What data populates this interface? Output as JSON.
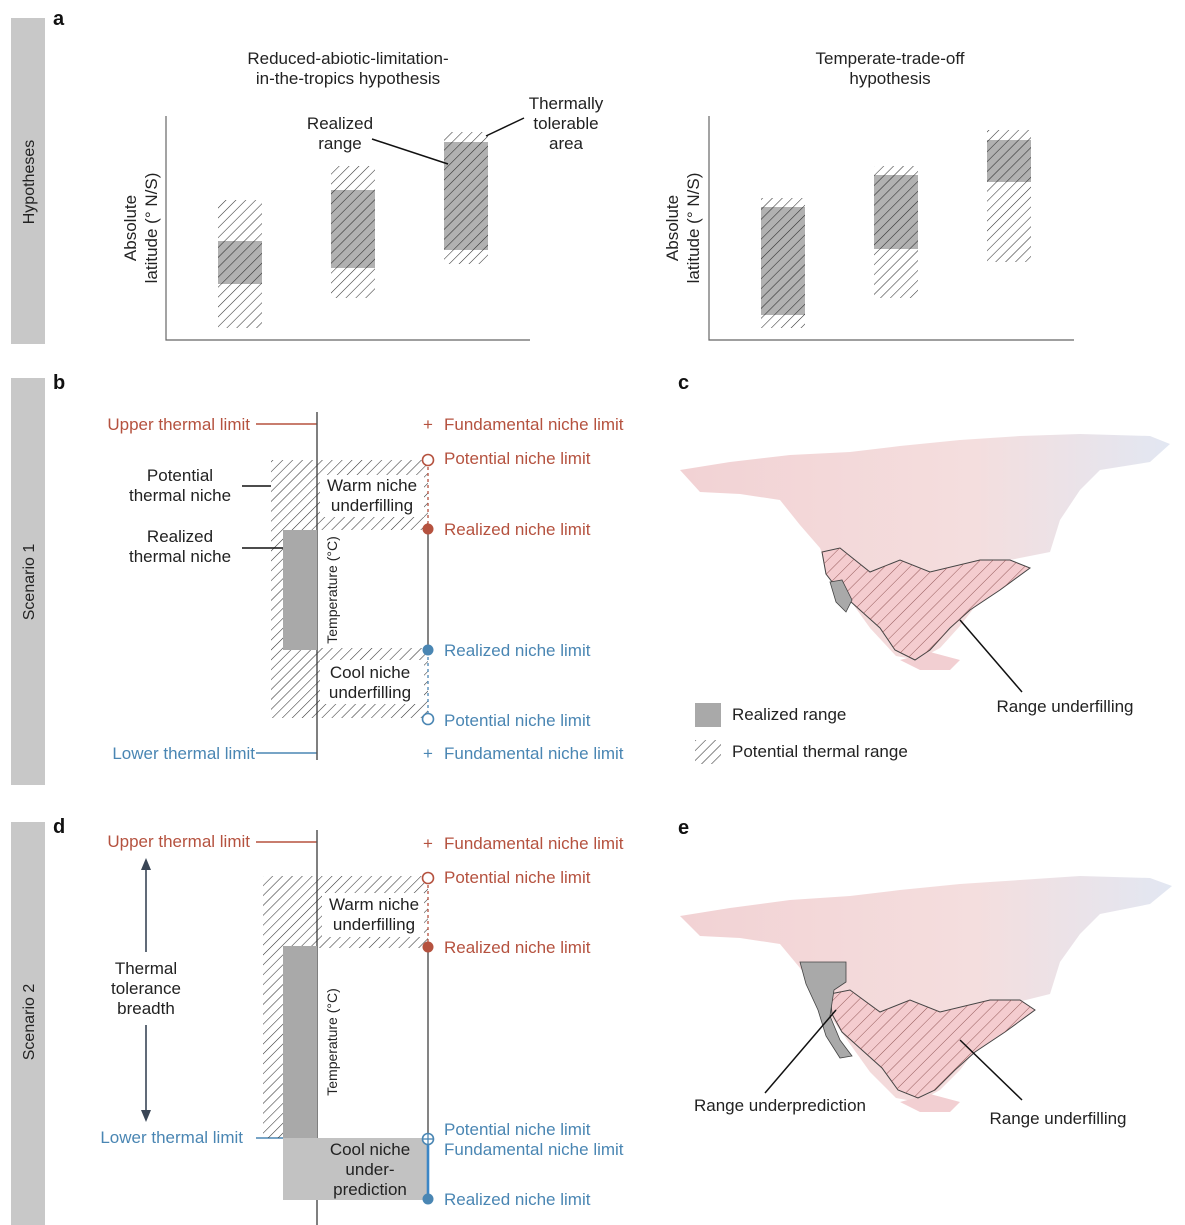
{
  "panel_letters": {
    "a": "a",
    "b": "b",
    "c": "c",
    "d": "d",
    "e": "e"
  },
  "side_labels": {
    "hypotheses": "Hypotheses",
    "scenario1": "Scenario 1",
    "scenario2": "Scenario 2"
  },
  "panel_a": {
    "left_title_1": "Reduced-abiotic-limitation-",
    "left_title_2": "in-the-tropics hypothesis",
    "right_title_1": "Temperate-trade-off",
    "right_title_2": "hypothesis",
    "ylabel_1": "Absolute",
    "ylabel_2": "latitude (° N/S)",
    "realized_1": "Realized",
    "realized_2": "range",
    "tolerable_1": "Thermally",
    "tolerable_2": "tolerable",
    "tolerable_3": "area"
  },
  "panel_b": {
    "upper_thermal": "Upper thermal limit",
    "lower_thermal": "Lower thermal limit",
    "potential_niche_1": "Potential",
    "potential_niche_2": "thermal niche",
    "realized_niche_1": "Realized",
    "realized_niche_2": "thermal niche",
    "warm_1": "Warm niche",
    "warm_2": "underfilling",
    "cool_1": "Cool niche",
    "cool_2": "underfilling",
    "temp_axis": "Temperature (°C)",
    "fund_top": "Fundamental niche limit",
    "pot_top": "Potential niche limit",
    "real_top": "Realized niche limit",
    "real_bot": "Realized niche limit",
    "pot_bot": "Potential niche limit",
    "fund_bot": "Fundamental niche limit",
    "plus": "+"
  },
  "panel_c": {
    "underfilling": "Range underfilling",
    "legend_realized": "Realized range",
    "legend_potential": "Potential thermal range"
  },
  "panel_d": {
    "upper_thermal": "Upper thermal limit",
    "lower_thermal": "Lower thermal limit",
    "breadth_1": "Thermal",
    "breadth_2": "tolerance",
    "breadth_3": "breadth",
    "warm_1": "Warm niche",
    "warm_2": "underfilling",
    "cool_1": "Cool niche",
    "cool_2": "under-",
    "cool_3": "prediction",
    "temp_axis": "Temperature (°C)",
    "fund_top": "Fundamental niche limit",
    "pot_top": "Potential niche limit",
    "real_top": "Realized niche limit",
    "pot_bot": "Potential niche limit",
    "fund_bot": "Fundamental niche limit",
    "real_bot": "Realized niche limit",
    "plus": "+"
  },
  "panel_e": {
    "underprediction": "Range underprediction",
    "underfilling": "Range underfilling"
  },
  "colors": {
    "warm": "#b5523f",
    "cool": "#4a86b3",
    "realized": "#a9a9a9",
    "sidebar": "#c8c8c8"
  }
}
